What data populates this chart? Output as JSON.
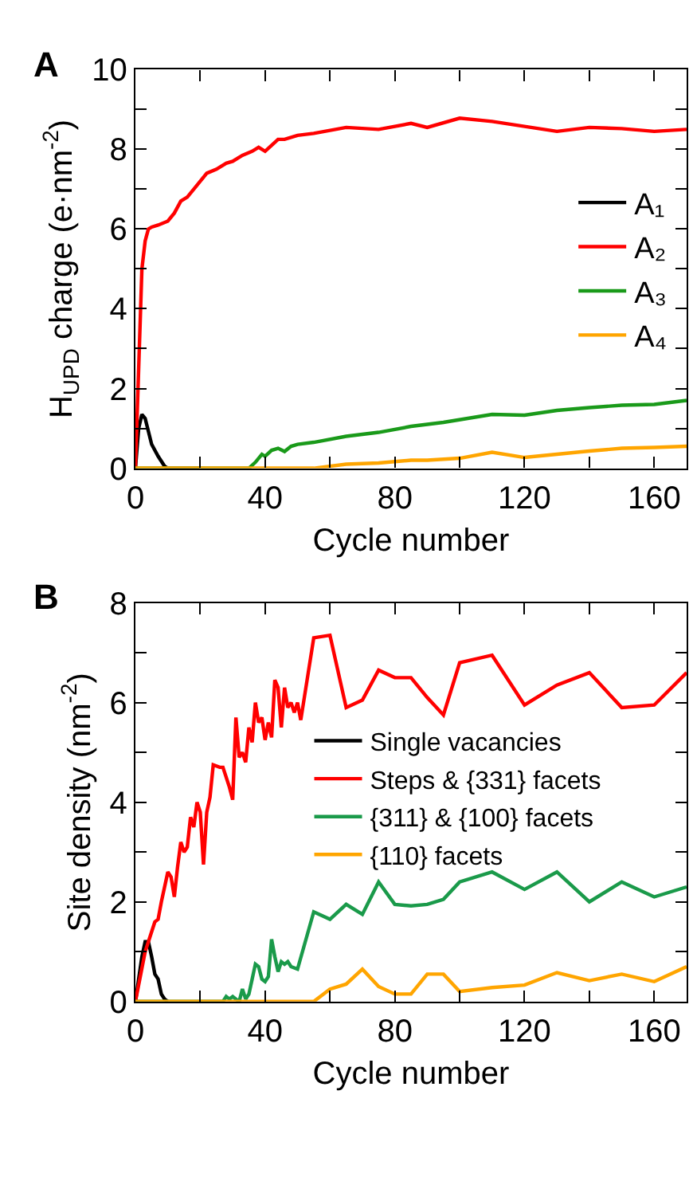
{
  "chart_data": [
    {
      "type": "line",
      "title": "A",
      "xlabel": "Cycle number",
      "ylabel": "H$_{UPD}$ charge (e·nm$^{-2}$)",
      "xlim": [
        0,
        170
      ],
      "ylim": [
        0,
        10
      ],
      "xticks": [
        0,
        {
          "value": 20,
          "label": null
        },
        40,
        {
          "value": 60,
          "label": null
        },
        80,
        {
          "value": 100,
          "label": null
        },
        120,
        {
          "value": 140,
          "label": null
        },
        160
      ],
      "yticks": [
        0,
        {
          "value": 1,
          "label": null
        },
        2,
        {
          "value": 3,
          "label": null
        },
        4,
        {
          "value": 5,
          "label": null
        },
        6,
        {
          "value": 7,
          "label": null
        },
        8,
        {
          "value": 9,
          "label": null
        },
        10
      ],
      "grid": false,
      "legend": "right",
      "line_style": "solid",
      "marker": "none",
      "series": [
        {
          "name": "A₁",
          "color": "#000000",
          "x": [
            0,
            1,
            2,
            3,
            5,
            7,
            9,
            10,
            20
          ],
          "values": [
            0,
            1.0,
            1.35,
            1.25,
            0.6,
            0.3,
            0.05,
            0,
            0
          ]
        },
        {
          "name": "A₂",
          "color": "#ff0000",
          "x": [
            0,
            1,
            2,
            3,
            4,
            5,
            7,
            10,
            12,
            14,
            16,
            18,
            20,
            22,
            25,
            28,
            30,
            33,
            36,
            38,
            40,
            42,
            44,
            46,
            50,
            55,
            65,
            75,
            85,
            90,
            100,
            110,
            130,
            140,
            150,
            160,
            170
          ],
          "values": [
            0,
            2.5,
            5.0,
            5.7,
            6.0,
            6.05,
            6.1,
            6.2,
            6.4,
            6.7,
            6.8,
            7.0,
            7.2,
            7.4,
            7.5,
            7.65,
            7.7,
            7.85,
            7.95,
            8.05,
            7.95,
            8.1,
            8.25,
            8.25,
            8.35,
            8.4,
            8.55,
            8.5,
            8.65,
            8.55,
            8.78,
            8.7,
            8.45,
            8.55,
            8.52,
            8.45,
            8.5
          ]
        },
        {
          "name": "A₃",
          "color": "#1a9a1a",
          "x": [
            0,
            35,
            37,
            39,
            40,
            42,
            44,
            46,
            48,
            50,
            55,
            65,
            75,
            85,
            95,
            110,
            120,
            130,
            140,
            150,
            160,
            170
          ],
          "values": [
            0,
            0,
            0.15,
            0.35,
            0.3,
            0.45,
            0.5,
            0.42,
            0.55,
            0.6,
            0.65,
            0.8,
            0.9,
            1.05,
            1.15,
            1.35,
            1.33,
            1.45,
            1.52,
            1.58,
            1.6,
            1.7
          ]
        },
        {
          "name": "A₄",
          "color": "#ffa500",
          "x": [
            0,
            55,
            65,
            75,
            85,
            90,
            100,
            110,
            120,
            130,
            140,
            150,
            160,
            170
          ],
          "values": [
            0,
            0,
            0.1,
            0.13,
            0.2,
            0.2,
            0.25,
            0.4,
            0.27,
            0.35,
            0.43,
            0.5,
            0.52,
            0.55
          ]
        }
      ]
    },
    {
      "type": "line",
      "title": "B",
      "xlabel": "Cycle number",
      "ylabel": "Site density (nm$^{-2}$)",
      "xlim": [
        0,
        170
      ],
      "ylim": [
        0,
        8
      ],
      "xticks": [
        0,
        {
          "value": 20,
          "label": null
        },
        40,
        {
          "value": 60,
          "label": null
        },
        80,
        {
          "value": 100,
          "label": null
        },
        120,
        {
          "value": 140,
          "label": null
        },
        160
      ],
      "yticks": [
        0,
        {
          "value": 1,
          "label": null
        },
        2,
        {
          "value": 3,
          "label": null
        },
        4,
        {
          "value": 5,
          "label": null
        },
        6,
        {
          "value": 7,
          "label": null
        },
        8
      ],
      "grid": false,
      "legend": "center",
      "line_style": "solid",
      "marker": "none",
      "series": [
        {
          "name": "Single vacancies",
          "color": "#000000",
          "x": [
            0,
            2,
            3,
            4,
            5,
            6,
            7,
            8,
            9,
            10
          ],
          "values": [
            0,
            0.9,
            1.2,
            1.2,
            0.9,
            0.55,
            0.45,
            0.15,
            0.05,
            0
          ]
        },
        {
          "name": "Steps & {331} facets",
          "color": "#ff0000",
          "x": [
            0,
            3,
            5,
            6,
            7,
            8,
            9,
            10,
            11,
            12,
            13,
            14,
            15,
            16,
            17,
            18,
            19,
            20,
            21,
            22,
            23,
            24,
            26,
            27,
            29,
            30,
            31,
            32,
            33,
            34,
            35,
            36,
            37,
            38,
            39,
            40,
            41,
            42,
            43,
            44,
            45,
            46,
            47,
            48,
            49,
            50,
            51,
            55,
            60,
            65,
            70,
            75,
            80,
            85,
            90,
            95,
            100,
            110,
            120,
            130,
            140,
            150,
            160,
            170
          ],
          "values": [
            0,
            1.0,
            1.4,
            1.6,
            1.65,
            2.0,
            2.3,
            2.6,
            2.5,
            2.1,
            2.7,
            3.2,
            3.0,
            3.1,
            3.7,
            3.5,
            4.0,
            3.8,
            2.75,
            3.8,
            4.1,
            4.75,
            4.7,
            4.7,
            4.3,
            4.05,
            5.7,
            4.9,
            5.0,
            4.8,
            5.5,
            5.2,
            6.0,
            5.6,
            5.7,
            5.25,
            5.6,
            5.3,
            6.45,
            6.3,
            5.5,
            6.3,
            5.9,
            6.0,
            5.8,
            6.0,
            5.65,
            7.3,
            7.35,
            5.9,
            6.05,
            6.65,
            6.5,
            6.5,
            6.1,
            5.75,
            6.8,
            6.95,
            5.95,
            6.35,
            6.6,
            5.9,
            5.95,
            6.6
          ]
        },
        {
          "name": "{311} & {100} facets",
          "color": "#1a9a4a",
          "x": [
            0,
            27,
            28,
            29,
            30,
            31,
            32,
            33,
            34,
            35,
            36,
            37,
            38,
            39,
            40,
            41,
            42,
            43,
            44,
            45,
            46,
            47,
            48,
            50,
            55,
            60,
            65,
            70,
            75,
            80,
            85,
            90,
            95,
            100,
            110,
            120,
            130,
            140,
            150,
            160,
            170
          ],
          "values": [
            0,
            0,
            0.1,
            0.05,
            0.1,
            0.05,
            0,
            0.25,
            0.05,
            0.15,
            0.45,
            0.75,
            0.7,
            0.45,
            0.4,
            0.5,
            1.25,
            0.9,
            0.6,
            0.8,
            0.75,
            0.8,
            0.7,
            0.65,
            1.8,
            1.65,
            1.95,
            1.75,
            2.4,
            1.95,
            1.92,
            1.95,
            2.05,
            2.4,
            2.6,
            2.25,
            2.6,
            2.0,
            2.4,
            2.1,
            2.3
          ]
        },
        {
          "name": "{110} facets",
          "color": "#ffa500",
          "x": [
            0,
            55,
            60,
            65,
            70,
            75,
            80,
            85,
            90,
            95,
            100,
            110,
            120,
            130,
            140,
            150,
            160,
            170
          ],
          "values": [
            0,
            0,
            0.25,
            0.35,
            0.65,
            0.3,
            0.15,
            0.15,
            0.55,
            0.55,
            0.2,
            0.28,
            0.33,
            0.58,
            0.42,
            0.55,
            0.4,
            0.7
          ]
        }
      ]
    }
  ]
}
